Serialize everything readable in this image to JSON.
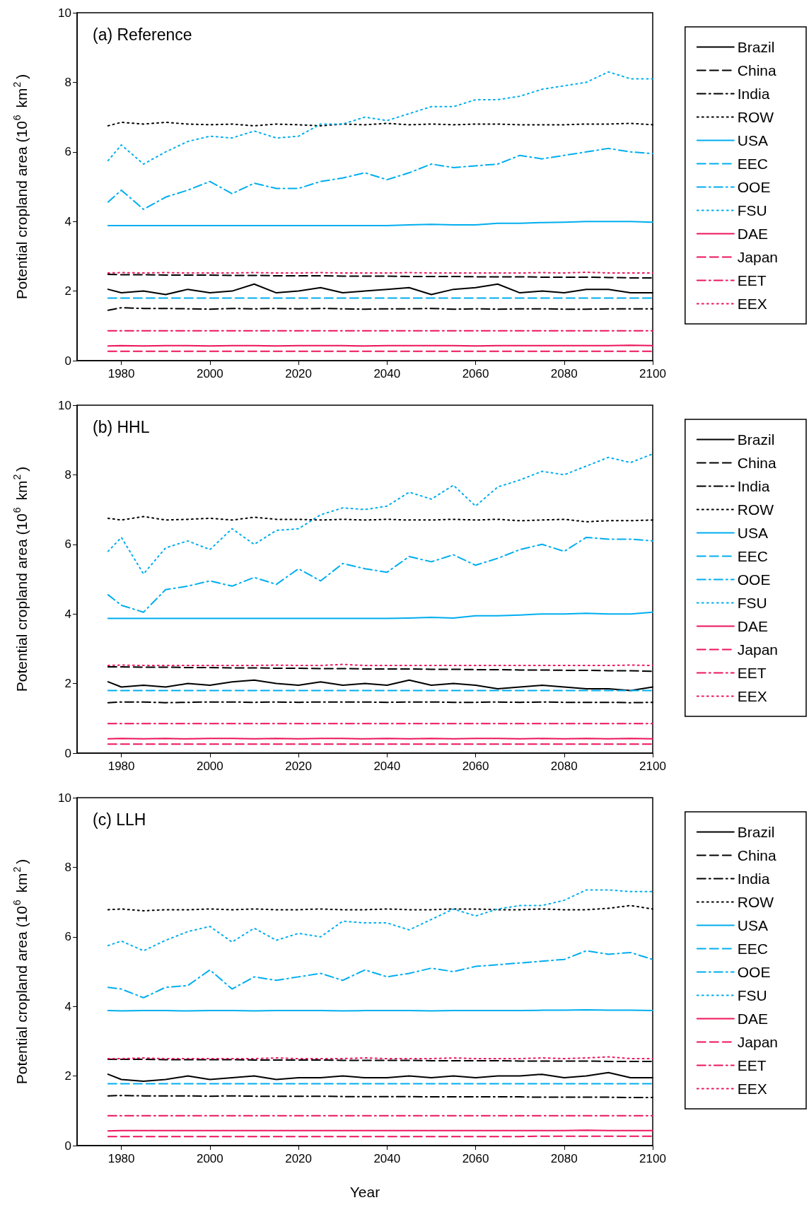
{
  "chart_data": [
    {
      "type": "line",
      "title": "(a) Reference",
      "ylabel": "Potential cropland area (10$^{6}$ km$^{2}$)",
      "xlim": [
        1970,
        2100
      ],
      "xticks": [
        1980,
        2000,
        2020,
        2040,
        2060,
        2080,
        2100
      ],
      "ylim": [
        0,
        10
      ],
      "yticks": [
        0,
        2,
        4,
        6,
        8,
        10
      ],
      "grid": false,
      "legend": "right",
      "marker": "none",
      "x": [
        1977,
        1980,
        1985,
        1990,
        1995,
        2000,
        2005,
        2010,
        2015,
        2020,
        2025,
        2030,
        2035,
        2040,
        2045,
        2050,
        2055,
        2060,
        2065,
        2070,
        2075,
        2080,
        2085,
        2090,
        2095,
        2100
      ],
      "series": [
        {
          "name": "Brazil",
          "color": "#000000",
          "line_style": "solid",
          "values": [
            2.05,
            1.95,
            2.0,
            1.9,
            2.05,
            1.95,
            2.0,
            2.2,
            1.95,
            2.0,
            2.1,
            1.95,
            2.0,
            2.05,
            2.1,
            1.9,
            2.05,
            2.1,
            2.2,
            1.95,
            2.0,
            1.95,
            2.05,
            2.05,
            1.95,
            1.95
          ]
        },
        {
          "name": "China",
          "color": "#000000",
          "line_style": "dashed",
          "values": [
            2.48,
            2.47,
            2.47,
            2.46,
            2.46,
            2.46,
            2.45,
            2.45,
            2.44,
            2.44,
            2.44,
            2.43,
            2.43,
            2.43,
            2.42,
            2.42,
            2.42,
            2.41,
            2.41,
            2.41,
            2.4,
            2.4,
            2.4,
            2.39,
            2.38,
            2.38
          ]
        },
        {
          "name": "India",
          "color": "#000000",
          "line_style": "dashdot",
          "values": [
            1.45,
            1.52,
            1.5,
            1.5,
            1.49,
            1.48,
            1.5,
            1.49,
            1.5,
            1.49,
            1.5,
            1.49,
            1.48,
            1.49,
            1.49,
            1.5,
            1.48,
            1.49,
            1.48,
            1.49,
            1.49,
            1.48,
            1.48,
            1.49,
            1.49,
            1.49
          ]
        },
        {
          "name": "ROW",
          "color": "#000000",
          "line_style": "dotted",
          "values": [
            6.75,
            6.85,
            6.8,
            6.85,
            6.8,
            6.78,
            6.8,
            6.75,
            6.8,
            6.78,
            6.75,
            6.8,
            6.78,
            6.82,
            6.78,
            6.8,
            6.78,
            6.8,
            6.8,
            6.78,
            6.78,
            6.78,
            6.8,
            6.8,
            6.82,
            6.78
          ]
        },
        {
          "name": "USA",
          "color": "#00aeef",
          "line_style": "solid",
          "values": [
            3.88,
            3.88,
            3.88,
            3.88,
            3.88,
            3.88,
            3.88,
            3.88,
            3.88,
            3.88,
            3.88,
            3.88,
            3.88,
            3.88,
            3.9,
            3.92,
            3.9,
            3.9,
            3.95,
            3.95,
            3.97,
            3.98,
            4.0,
            4.0,
            4.0,
            3.98
          ]
        },
        {
          "name": "EEC",
          "color": "#00aeef",
          "line_style": "dashed",
          "values": [
            1.8,
            1.8,
            1.8,
            1.8,
            1.8,
            1.8,
            1.8,
            1.8,
            1.8,
            1.8,
            1.8,
            1.8,
            1.8,
            1.8,
            1.8,
            1.8,
            1.8,
            1.8,
            1.8,
            1.8,
            1.8,
            1.8,
            1.8,
            1.8,
            1.8,
            1.8
          ]
        },
        {
          "name": "OOE",
          "color": "#00aeef",
          "line_style": "dashdot",
          "values": [
            4.56,
            4.9,
            4.35,
            4.7,
            4.9,
            5.15,
            4.8,
            5.1,
            4.95,
            4.95,
            5.15,
            5.25,
            5.4,
            5.2,
            5.4,
            5.65,
            5.55,
            5.6,
            5.65,
            5.9,
            5.8,
            5.9,
            6.0,
            6.1,
            6.0,
            5.95
          ]
        },
        {
          "name": "FSU",
          "color": "#00aeef",
          "line_style": "dotted",
          "values": [
            5.75,
            6.2,
            5.65,
            6.0,
            6.3,
            6.45,
            6.4,
            6.6,
            6.4,
            6.45,
            6.8,
            6.8,
            7.0,
            6.9,
            7.1,
            7.3,
            7.3,
            7.5,
            7.5,
            7.6,
            7.8,
            7.9,
            8.0,
            8.3,
            8.1,
            8.1
          ]
        },
        {
          "name": "DAE",
          "color": "#ed145b",
          "line_style": "solid",
          "values": [
            0.42,
            0.43,
            0.42,
            0.43,
            0.43,
            0.42,
            0.43,
            0.43,
            0.42,
            0.43,
            0.43,
            0.43,
            0.42,
            0.43,
            0.43,
            0.43,
            0.43,
            0.42,
            0.43,
            0.43,
            0.43,
            0.43,
            0.43,
            0.43,
            0.44,
            0.43
          ]
        },
        {
          "name": "Japan",
          "color": "#ed145b",
          "line_style": "dashed",
          "values": [
            0.27,
            0.27,
            0.27,
            0.27,
            0.27,
            0.27,
            0.27,
            0.27,
            0.27,
            0.27,
            0.27,
            0.27,
            0.27,
            0.27,
            0.27,
            0.27,
            0.27,
            0.27,
            0.27,
            0.27,
            0.27,
            0.27,
            0.27,
            0.27,
            0.27,
            0.27
          ]
        },
        {
          "name": "EET",
          "color": "#ed145b",
          "line_style": "dashdot",
          "values": [
            0.86,
            0.86,
            0.86,
            0.86,
            0.86,
            0.86,
            0.86,
            0.86,
            0.86,
            0.86,
            0.86,
            0.86,
            0.86,
            0.86,
            0.86,
            0.86,
            0.86,
            0.86,
            0.86,
            0.86,
            0.86,
            0.86,
            0.86,
            0.86,
            0.86,
            0.86
          ]
        },
        {
          "name": "EEX",
          "color": "#ed145b",
          "line_style": "dotted",
          "values": [
            2.52,
            2.53,
            2.52,
            2.53,
            2.52,
            2.52,
            2.52,
            2.53,
            2.52,
            2.52,
            2.53,
            2.52,
            2.52,
            2.52,
            2.53,
            2.52,
            2.52,
            2.52,
            2.52,
            2.52,
            2.53,
            2.52,
            2.54,
            2.52,
            2.52,
            2.52
          ]
        }
      ]
    },
    {
      "type": "line",
      "title": "(b) HHL",
      "ylabel": "Potential cropland area (10$^{6}$ km$^{2}$)",
      "xlim": [
        1970,
        2100
      ],
      "xticks": [
        1980,
        2000,
        2020,
        2040,
        2060,
        2080,
        2100
      ],
      "ylim": [
        0,
        10
      ],
      "yticks": [
        0,
        2,
        4,
        6,
        8,
        10
      ],
      "grid": false,
      "legend": "right",
      "marker": "none",
      "x": [
        1977,
        1980,
        1985,
        1990,
        1995,
        2000,
        2005,
        2010,
        2015,
        2020,
        2025,
        2030,
        2035,
        2040,
        2045,
        2050,
        2055,
        2060,
        2065,
        2070,
        2075,
        2080,
        2085,
        2090,
        2095,
        2100
      ],
      "series": [
        {
          "name": "Brazil",
          "color": "#000000",
          "line_style": "solid",
          "values": [
            2.05,
            1.9,
            1.95,
            1.9,
            2.0,
            1.95,
            2.05,
            2.1,
            2.0,
            1.95,
            2.05,
            1.95,
            2.0,
            1.95,
            2.1,
            1.95,
            2.0,
            1.95,
            1.85,
            1.9,
            1.95,
            1.9,
            1.85,
            1.85,
            1.8,
            1.9
          ]
        },
        {
          "name": "China",
          "color": "#000000",
          "line_style": "dashed",
          "values": [
            2.48,
            2.48,
            2.47,
            2.47,
            2.46,
            2.46,
            2.45,
            2.45,
            2.44,
            2.44,
            2.43,
            2.43,
            2.42,
            2.42,
            2.42,
            2.41,
            2.41,
            2.4,
            2.4,
            2.39,
            2.39,
            2.38,
            2.38,
            2.37,
            2.37,
            2.35
          ]
        },
        {
          "name": "India",
          "color": "#000000",
          "line_style": "dashdot",
          "values": [
            1.45,
            1.47,
            1.47,
            1.45,
            1.46,
            1.47,
            1.47,
            1.46,
            1.47,
            1.46,
            1.47,
            1.47,
            1.47,
            1.46,
            1.47,
            1.47,
            1.46,
            1.46,
            1.47,
            1.46,
            1.47,
            1.46,
            1.46,
            1.46,
            1.45,
            1.46
          ]
        },
        {
          "name": "ROW",
          "color": "#000000",
          "line_style": "dotted",
          "values": [
            6.75,
            6.7,
            6.8,
            6.7,
            6.72,
            6.75,
            6.7,
            6.78,
            6.72,
            6.72,
            6.7,
            6.72,
            6.7,
            6.72,
            6.7,
            6.7,
            6.72,
            6.7,
            6.72,
            6.68,
            6.7,
            6.72,
            6.65,
            6.68,
            6.68,
            6.7
          ]
        },
        {
          "name": "USA",
          "color": "#00aeef",
          "line_style": "solid",
          "values": [
            3.87,
            3.87,
            3.87,
            3.87,
            3.87,
            3.87,
            3.87,
            3.87,
            3.87,
            3.87,
            3.87,
            3.87,
            3.87,
            3.87,
            3.88,
            3.9,
            3.88,
            3.95,
            3.95,
            3.97,
            4.0,
            4.0,
            4.02,
            4.0,
            4.0,
            4.05
          ]
        },
        {
          "name": "EEC",
          "color": "#00aeef",
          "line_style": "dashed",
          "values": [
            1.8,
            1.8,
            1.8,
            1.8,
            1.8,
            1.8,
            1.8,
            1.8,
            1.8,
            1.8,
            1.8,
            1.8,
            1.8,
            1.8,
            1.8,
            1.8,
            1.8,
            1.8,
            1.8,
            1.8,
            1.8,
            1.8,
            1.8,
            1.8,
            1.8,
            1.8
          ]
        },
        {
          "name": "OOE",
          "color": "#00aeef",
          "line_style": "dashdot",
          "values": [
            4.55,
            4.25,
            4.05,
            4.7,
            4.8,
            4.95,
            4.8,
            5.05,
            4.85,
            5.3,
            4.95,
            5.45,
            5.3,
            5.2,
            5.65,
            5.5,
            5.7,
            5.4,
            5.6,
            5.85,
            6.0,
            5.8,
            6.2,
            6.15,
            6.15,
            6.1
          ]
        },
        {
          "name": "FSU",
          "color": "#00aeef",
          "line_style": "dotted",
          "values": [
            5.8,
            6.2,
            5.15,
            5.9,
            6.1,
            5.85,
            6.45,
            6.0,
            6.4,
            6.45,
            6.85,
            7.05,
            7.0,
            7.1,
            7.5,
            7.3,
            7.7,
            7.1,
            7.65,
            7.85,
            8.1,
            8.0,
            8.25,
            8.5,
            8.35,
            8.6
          ]
        },
        {
          "name": "DAE",
          "color": "#ed145b",
          "line_style": "solid",
          "values": [
            0.41,
            0.42,
            0.41,
            0.42,
            0.41,
            0.42,
            0.42,
            0.41,
            0.42,
            0.41,
            0.42,
            0.42,
            0.41,
            0.42,
            0.41,
            0.42,
            0.41,
            0.42,
            0.42,
            0.41,
            0.42,
            0.41,
            0.42,
            0.41,
            0.42,
            0.41
          ]
        },
        {
          "name": "Japan",
          "color": "#ed145b",
          "line_style": "dashed",
          "values": [
            0.26,
            0.26,
            0.26,
            0.26,
            0.26,
            0.26,
            0.26,
            0.26,
            0.26,
            0.26,
            0.26,
            0.26,
            0.26,
            0.26,
            0.26,
            0.26,
            0.26,
            0.26,
            0.26,
            0.26,
            0.26,
            0.26,
            0.26,
            0.26,
            0.26,
            0.26
          ]
        },
        {
          "name": "EET",
          "color": "#ed145b",
          "line_style": "dashdot",
          "values": [
            0.85,
            0.85,
            0.85,
            0.85,
            0.85,
            0.85,
            0.85,
            0.85,
            0.85,
            0.85,
            0.85,
            0.85,
            0.85,
            0.85,
            0.85,
            0.85,
            0.85,
            0.85,
            0.85,
            0.85,
            0.85,
            0.85,
            0.85,
            0.85,
            0.85,
            0.85
          ]
        },
        {
          "name": "EEX",
          "color": "#ed145b",
          "line_style": "dotted",
          "values": [
            2.52,
            2.53,
            2.52,
            2.52,
            2.52,
            2.52,
            2.52,
            2.52,
            2.53,
            2.52,
            2.52,
            2.55,
            2.52,
            2.52,
            2.52,
            2.52,
            2.52,
            2.52,
            2.52,
            2.52,
            2.52,
            2.52,
            2.52,
            2.52,
            2.53,
            2.52
          ]
        }
      ]
    },
    {
      "type": "line",
      "title": "(c) LLH",
      "xlabel": "Year",
      "ylabel": "Potential cropland area (10$^{6}$ km$^{2}$)",
      "xlim": [
        1970,
        2100
      ],
      "xticks": [
        1980,
        2000,
        2020,
        2040,
        2060,
        2080,
        2100
      ],
      "ylim": [
        0,
        10
      ],
      "yticks": [
        0,
        2,
        4,
        6,
        8,
        10
      ],
      "grid": false,
      "legend": "right",
      "marker": "none",
      "x": [
        1977,
        1980,
        1985,
        1990,
        1995,
        2000,
        2005,
        2010,
        2015,
        2020,
        2025,
        2030,
        2035,
        2040,
        2045,
        2050,
        2055,
        2060,
        2065,
        2070,
        2075,
        2080,
        2085,
        2090,
        2095,
        2100
      ],
      "series": [
        {
          "name": "Brazil",
          "color": "#000000",
          "line_style": "solid",
          "values": [
            2.05,
            1.9,
            1.85,
            1.9,
            2.0,
            1.9,
            1.95,
            2.0,
            1.9,
            1.95,
            1.95,
            2.0,
            1.95,
            1.95,
            2.0,
            1.95,
            2.0,
            1.95,
            2.0,
            2.0,
            2.05,
            1.95,
            2.0,
            2.1,
            1.95,
            1.95
          ]
        },
        {
          "name": "China",
          "color": "#000000",
          "line_style": "dashed",
          "values": [
            2.48,
            2.48,
            2.48,
            2.47,
            2.47,
            2.47,
            2.47,
            2.46,
            2.46,
            2.46,
            2.46,
            2.45,
            2.45,
            2.45,
            2.45,
            2.44,
            2.44,
            2.44,
            2.44,
            2.43,
            2.43,
            2.43,
            2.43,
            2.42,
            2.42,
            2.42
          ]
        },
        {
          "name": "India",
          "color": "#000000",
          "line_style": "dashdot",
          "values": [
            1.43,
            1.44,
            1.43,
            1.43,
            1.43,
            1.42,
            1.43,
            1.42,
            1.42,
            1.42,
            1.42,
            1.41,
            1.41,
            1.41,
            1.41,
            1.4,
            1.4,
            1.4,
            1.4,
            1.4,
            1.39,
            1.39,
            1.39,
            1.39,
            1.38,
            1.38
          ]
        },
        {
          "name": "ROW",
          "color": "#000000",
          "line_style": "dotted",
          "values": [
            6.78,
            6.8,
            6.75,
            6.78,
            6.78,
            6.8,
            6.78,
            6.8,
            6.78,
            6.78,
            6.8,
            6.78,
            6.78,
            6.8,
            6.78,
            6.78,
            6.8,
            6.8,
            6.78,
            6.78,
            6.8,
            6.78,
            6.78,
            6.82,
            6.9,
            6.8
          ]
        },
        {
          "name": "USA",
          "color": "#00aeef",
          "line_style": "solid",
          "values": [
            3.88,
            3.87,
            3.88,
            3.88,
            3.87,
            3.88,
            3.88,
            3.87,
            3.88,
            3.88,
            3.88,
            3.87,
            3.88,
            3.88,
            3.88,
            3.87,
            3.88,
            3.88,
            3.88,
            3.88,
            3.89,
            3.89,
            3.9,
            3.89,
            3.89,
            3.88
          ]
        },
        {
          "name": "EEC",
          "color": "#00aeef",
          "line_style": "dashed",
          "values": [
            1.78,
            1.78,
            1.78,
            1.78,
            1.78,
            1.78,
            1.78,
            1.78,
            1.78,
            1.78,
            1.78,
            1.78,
            1.78,
            1.78,
            1.78,
            1.78,
            1.78,
            1.78,
            1.78,
            1.78,
            1.78,
            1.78,
            1.78,
            1.78,
            1.78,
            1.78
          ]
        },
        {
          "name": "OOE",
          "color": "#00aeef",
          "line_style": "dashdot",
          "values": [
            4.55,
            4.5,
            4.25,
            4.55,
            4.6,
            5.05,
            4.5,
            4.85,
            4.75,
            4.85,
            4.95,
            4.75,
            5.05,
            4.85,
            4.95,
            5.1,
            5.0,
            5.15,
            5.2,
            5.25,
            5.3,
            5.35,
            5.6,
            5.5,
            5.55,
            5.35
          ]
        },
        {
          "name": "FSU",
          "color": "#00aeef",
          "line_style": "dotted",
          "values": [
            5.75,
            5.88,
            5.6,
            5.9,
            6.15,
            6.3,
            5.85,
            6.25,
            5.9,
            6.1,
            6.0,
            6.45,
            6.4,
            6.4,
            6.2,
            6.5,
            6.8,
            6.6,
            6.8,
            6.9,
            6.9,
            7.05,
            7.35,
            7.35,
            7.3,
            7.3
          ]
        },
        {
          "name": "DAE",
          "color": "#ed145b",
          "line_style": "solid",
          "values": [
            0.42,
            0.43,
            0.43,
            0.43,
            0.43,
            0.43,
            0.43,
            0.43,
            0.43,
            0.43,
            0.43,
            0.43,
            0.43,
            0.43,
            0.43,
            0.43,
            0.43,
            0.43,
            0.43,
            0.43,
            0.43,
            0.43,
            0.44,
            0.43,
            0.43,
            0.43
          ]
        },
        {
          "name": "Japan",
          "color": "#ed145b",
          "line_style": "dashed",
          "values": [
            0.26,
            0.26,
            0.26,
            0.26,
            0.26,
            0.26,
            0.26,
            0.26,
            0.26,
            0.26,
            0.26,
            0.26,
            0.26,
            0.26,
            0.26,
            0.26,
            0.26,
            0.26,
            0.26,
            0.26,
            0.27,
            0.27,
            0.27,
            0.27,
            0.27,
            0.27
          ]
        },
        {
          "name": "EET",
          "color": "#ed145b",
          "line_style": "dashdot",
          "values": [
            0.86,
            0.86,
            0.86,
            0.86,
            0.86,
            0.86,
            0.86,
            0.86,
            0.86,
            0.86,
            0.86,
            0.86,
            0.86,
            0.86,
            0.86,
            0.86,
            0.86,
            0.86,
            0.86,
            0.86,
            0.86,
            0.86,
            0.86,
            0.86,
            0.86,
            0.86
          ]
        },
        {
          "name": "EEX",
          "color": "#ed145b",
          "line_style": "dotted",
          "values": [
            2.5,
            2.5,
            2.52,
            2.5,
            2.5,
            2.5,
            2.5,
            2.5,
            2.52,
            2.5,
            2.5,
            2.5,
            2.52,
            2.5,
            2.5,
            2.5,
            2.52,
            2.5,
            2.5,
            2.5,
            2.52,
            2.5,
            2.52,
            2.55,
            2.5,
            2.5
          ]
        }
      ]
    }
  ]
}
